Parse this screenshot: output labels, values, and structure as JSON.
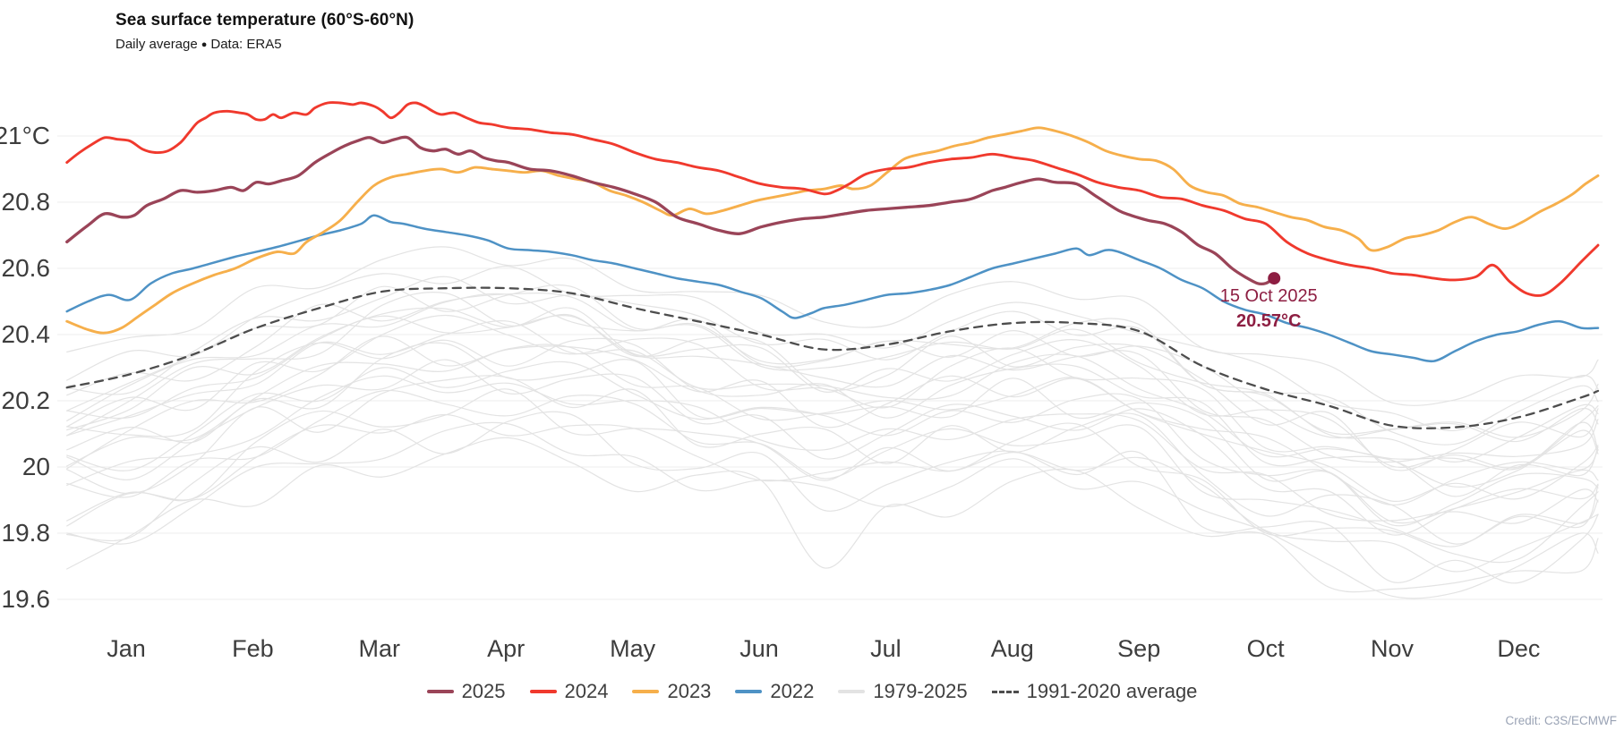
{
  "header": {
    "title": "Sea surface temperature (60°S-60°N)",
    "subtitle_prefix": "Daily average",
    "subtitle_separator": "●",
    "subtitle_suffix": "Data: ERA5"
  },
  "annotation": {
    "date": "15 Oct 2025",
    "value": "20.57°C"
  },
  "credit": "Credit: C3S/ECMWF",
  "colors": {
    "y2025": "#9a4458",
    "y2024": "#f0392d",
    "y2023": "#f6af4b",
    "y2022": "#4e92c5",
    "ensemble": "#e3e3e3",
    "average": "#4d4d4d",
    "annotation": "#8d1e42",
    "grid": "#ececec",
    "axis_text": "#3d3d3d",
    "credit_text": "#9aa3b5"
  },
  "chart_data": {
    "type": "line",
    "title": "Sea surface temperature (60°S-60°N)",
    "subtitle": "Daily average ● Data: ERA5",
    "ylabel": "°C",
    "ylim": [
      19.45,
      21.15
    ],
    "grid": "horizontal-only",
    "legend_position": "bottom",
    "x_axis": {
      "months": [
        "Jan",
        "Feb",
        "Mar",
        "Apr",
        "May",
        "Jun",
        "Jul",
        "Aug",
        "Sep",
        "Oct",
        "Nov",
        "Dec"
      ]
    },
    "y_axis": {
      "ticks": [
        21,
        20.8,
        20.6,
        20.4,
        20.2,
        20,
        19.8,
        19.6
      ],
      "tick_labels": [
        "21°C",
        "20.8",
        "20.6",
        "20.4",
        "20.2",
        "20",
        "19.8",
        "19.6"
      ]
    },
    "legend": [
      {
        "id": "y2025",
        "label": "2025",
        "style": "solid"
      },
      {
        "id": "y2024",
        "label": "2024",
        "style": "solid"
      },
      {
        "id": "y2023",
        "label": "2023",
        "style": "solid"
      },
      {
        "id": "y2022",
        "label": "2022",
        "style": "solid"
      },
      {
        "id": "ensemble",
        "label": "1979-2025",
        "style": "solid"
      },
      {
        "id": "average",
        "label": "1991-2020 average",
        "style": "dashed"
      }
    ],
    "end_point": {
      "series": "y2025",
      "day": 288,
      "value": 20.57,
      "label_date": "15 Oct 2025",
      "label_value": "20.57°C"
    },
    "series": {
      "y2025": {
        "label": "2025",
        "days": [
          1,
          6,
          10,
          14,
          17,
          20,
          24,
          28,
          32,
          36,
          40,
          43,
          46,
          49,
          52,
          56,
          60,
          64,
          67,
          70,
          73,
          76,
          79,
          82,
          85,
          88,
          91,
          94,
          97,
          100,
          103,
          106,
          111,
          116,
          121,
          126,
          131,
          136,
          141,
          146,
          151,
          156,
          161,
          166,
          171,
          176,
          181,
          186,
          191,
          196,
          201,
          206,
          211,
          216,
          221,
          224,
          228,
          232,
          236,
          241,
          246,
          251,
          254,
          258,
          262,
          266,
          270,
          274,
          278,
          281,
          284,
          286,
          288
        ],
        "values": [
          20.68,
          20.73,
          20.765,
          20.755,
          20.76,
          20.79,
          20.81,
          20.835,
          20.83,
          20.835,
          20.845,
          20.835,
          20.86,
          20.855,
          20.865,
          20.88,
          20.92,
          20.95,
          20.97,
          20.985,
          20.995,
          20.98,
          20.99,
          20.995,
          20.965,
          20.955,
          20.96,
          20.945,
          20.955,
          20.935,
          20.925,
          20.92,
          20.9,
          20.895,
          20.88,
          20.86,
          20.845,
          20.825,
          20.8,
          20.755,
          20.735,
          20.715,
          20.705,
          20.725,
          20.74,
          20.75,
          20.755,
          20.765,
          20.775,
          20.78,
          20.785,
          20.79,
          20.8,
          20.81,
          20.835,
          20.845,
          20.86,
          20.87,
          20.86,
          20.855,
          20.815,
          20.775,
          20.76,
          20.745,
          20.735,
          20.71,
          20.67,
          20.645,
          20.6,
          20.575,
          20.555,
          20.555,
          20.57
        ]
      },
      "y2024": {
        "label": "2024",
        "days": [
          1,
          4,
          7,
          10,
          13,
          16,
          19,
          22,
          25,
          28,
          30,
          32,
          34,
          36,
          39,
          42,
          44,
          46,
          48,
          50,
          52,
          55,
          58,
          60,
          63,
          66,
          69,
          71,
          74,
          76,
          78,
          80,
          82,
          84,
          86,
          88,
          90,
          93,
          96,
          99,
          102,
          106,
          111,
          116,
          121,
          126,
          131,
          136,
          141,
          146,
          151,
          156,
          161,
          166,
          171,
          176,
          181,
          184,
          187,
          191,
          196,
          201,
          206,
          211,
          216,
          221,
          226,
          231,
          236,
          241,
          246,
          251,
          256,
          261,
          266,
          271,
          276,
          281,
          286,
          291,
          296,
          301,
          306,
          311,
          316,
          321,
          326,
          331,
          336,
          340,
          344,
          348,
          352,
          356,
          361,
          365
        ],
        "values": [
          20.92,
          20.95,
          20.975,
          20.995,
          20.99,
          20.985,
          20.96,
          20.95,
          20.955,
          20.98,
          21.01,
          21.04,
          21.055,
          21.07,
          21.075,
          21.07,
          21.065,
          21.05,
          21.05,
          21.065,
          21.055,
          21.07,
          21.065,
          21.085,
          21.1,
          21.1,
          21.095,
          21.1,
          21.09,
          21.075,
          21.055,
          21.07,
          21.095,
          21.1,
          21.09,
          21.075,
          21.065,
          21.07,
          21.055,
          21.04,
          21.035,
          21.025,
          21.02,
          21.01,
          21.005,
          20.99,
          20.975,
          20.95,
          20.93,
          20.92,
          20.905,
          20.895,
          20.875,
          20.855,
          20.845,
          20.84,
          20.825,
          20.835,
          20.855,
          20.885,
          20.9,
          20.905,
          20.92,
          20.93,
          20.935,
          20.945,
          20.935,
          20.925,
          20.905,
          20.885,
          20.86,
          20.845,
          20.835,
          20.815,
          20.81,
          20.79,
          20.775,
          20.75,
          20.735,
          20.68,
          20.645,
          20.625,
          20.61,
          20.6,
          20.585,
          20.58,
          20.57,
          20.565,
          20.575,
          20.61,
          20.56,
          20.525,
          20.52,
          20.555,
          20.62,
          20.67
        ]
      },
      "y2023": {
        "label": "2023",
        "days": [
          1,
          6,
          10,
          14,
          18,
          22,
          26,
          31,
          36,
          41,
          46,
          51,
          55,
          58,
          62,
          66,
          70,
          74,
          78,
          82,
          86,
          90,
          94,
          98,
          102,
          106,
          110,
          114,
          118,
          122,
          126,
          130,
          134,
          138,
          142,
          145,
          149,
          153,
          157,
          161,
          165,
          169,
          173,
          177,
          181,
          185,
          188,
          192,
          196,
          200,
          204,
          208,
          212,
          216,
          220,
          224,
          228,
          232,
          236,
          240,
          244,
          248,
          252,
          256,
          260,
          264,
          268,
          272,
          276,
          280,
          284,
          288,
          292,
          296,
          300,
          304,
          308,
          311,
          315,
          319,
          323,
          327,
          331,
          335,
          339,
          343,
          347,
          351,
          355,
          359,
          362,
          365
        ],
        "values": [
          20.44,
          20.415,
          20.405,
          20.42,
          20.455,
          20.49,
          20.525,
          20.555,
          20.58,
          20.6,
          20.63,
          20.65,
          20.645,
          20.68,
          20.71,
          20.745,
          20.8,
          20.85,
          20.875,
          20.885,
          20.895,
          20.9,
          20.89,
          20.905,
          20.9,
          20.895,
          20.89,
          20.895,
          20.88,
          20.87,
          20.86,
          20.835,
          20.82,
          20.8,
          20.775,
          20.76,
          20.78,
          20.765,
          20.775,
          20.79,
          20.805,
          20.815,
          20.825,
          20.835,
          20.84,
          20.85,
          20.84,
          20.85,
          20.89,
          20.93,
          20.945,
          20.955,
          20.97,
          20.98,
          20.995,
          21.005,
          21.015,
          21.025,
          21.015,
          21.0,
          20.98,
          20.955,
          20.94,
          20.93,
          20.925,
          20.9,
          20.85,
          20.83,
          20.82,
          20.795,
          20.785,
          20.77,
          20.755,
          20.745,
          20.725,
          20.715,
          20.69,
          20.655,
          20.665,
          20.69,
          20.7,
          20.715,
          20.74,
          20.755,
          20.735,
          20.72,
          20.74,
          20.77,
          20.795,
          20.825,
          20.855,
          20.88
        ]
      },
      "y2022": {
        "label": "2022",
        "days": [
          1,
          6,
          11,
          16,
          21,
          26,
          31,
          41,
          51,
          61,
          66,
          71,
          74,
          78,
          81,
          86,
          91,
          96,
          101,
          106,
          111,
          116,
          121,
          126,
          131,
          136,
          141,
          146,
          151,
          156,
          161,
          166,
          171,
          174,
          178,
          181,
          186,
          191,
          196,
          201,
          206,
          211,
          216,
          221,
          226,
          231,
          236,
          241,
          244,
          248,
          251,
          256,
          261,
          266,
          271,
          276,
          281,
          286,
          291,
          296,
          301,
          306,
          311,
          316,
          321,
          326,
          331,
          336,
          341,
          346,
          351,
          356,
          361,
          365
        ],
        "values": [
          20.47,
          20.5,
          20.52,
          20.505,
          20.555,
          20.585,
          20.6,
          20.635,
          20.665,
          20.7,
          20.715,
          20.735,
          20.76,
          20.74,
          20.735,
          20.72,
          20.71,
          20.7,
          20.685,
          20.66,
          20.655,
          20.65,
          20.64,
          20.625,
          20.615,
          20.6,
          20.585,
          20.57,
          20.56,
          20.55,
          20.53,
          20.51,
          20.47,
          20.45,
          20.465,
          20.48,
          20.49,
          20.505,
          20.52,
          20.525,
          20.535,
          20.55,
          20.575,
          20.6,
          20.615,
          20.63,
          20.645,
          20.66,
          20.64,
          20.655,
          20.65,
          20.625,
          20.6,
          20.565,
          20.54,
          20.5,
          20.475,
          20.46,
          20.435,
          20.42,
          20.4,
          20.375,
          20.35,
          20.34,
          20.33,
          20.32,
          20.35,
          20.38,
          20.4,
          20.41,
          20.43,
          20.44,
          20.42,
          20.42
        ]
      },
      "average_1991_2020": {
        "label": "1991-2020 average",
        "dashed": true,
        "days": [
          1,
          16,
          31,
          46,
          61,
          76,
          91,
          106,
          121,
          136,
          151,
          166,
          181,
          196,
          211,
          226,
          241,
          256,
          271,
          286,
          301,
          316,
          331,
          346,
          361,
          365
        ],
        "values": [
          20.24,
          20.28,
          20.34,
          20.42,
          20.48,
          20.53,
          20.54,
          20.54,
          20.525,
          20.48,
          20.44,
          20.4,
          20.355,
          20.37,
          20.41,
          20.435,
          20.435,
          20.41,
          20.305,
          20.235,
          20.185,
          20.125,
          20.12,
          20.15,
          20.21,
          20.23
        ]
      },
      "ensemble_1979_2025": {
        "label": "1979-2025",
        "days": [
          1,
          16,
          31,
          46,
          61,
          76,
          91,
          106,
          121,
          136,
          151,
          166,
          181,
          196,
          211,
          226,
          241,
          256,
          271,
          286,
          301,
          316,
          331,
          346,
          361,
          365
        ],
        "base_values": [
          20.24,
          20.28,
          20.34,
          20.42,
          20.48,
          20.53,
          20.54,
          20.54,
          20.525,
          20.48,
          20.44,
          20.4,
          20.355,
          20.37,
          20.41,
          20.435,
          20.435,
          20.41,
          20.305,
          20.235,
          20.185,
          20.125,
          20.12,
          20.15,
          20.21,
          20.23
        ],
        "noise_pattern": [
          0.03,
          -0.02,
          0.045,
          -0.04,
          0.01,
          0.05,
          -0.03,
          0.02,
          -0.05,
          0,
          0.04,
          -0.01,
          -0.045,
          0.03,
          0.05,
          -0.025,
          0.01,
          -0.05,
          0.02,
          0.045,
          -0.03,
          -0.01,
          0.05,
          -0.04,
          0.005,
          0.025
        ],
        "lines": [
          {
            "offset": -0.5,
            "phase": 3,
            "amp": 1.2,
            "spikes": [
              [
                12,
                -0.13
              ]
            ]
          },
          {
            "offset": -0.46,
            "phase": 7,
            "amp": 1.0,
            "spikes": [
              [
                21,
                -0.1
              ]
            ]
          },
          {
            "offset": -0.43,
            "phase": 11,
            "amp": 1.4
          },
          {
            "offset": -0.4,
            "phase": 1,
            "amp": 0.9
          },
          {
            "offset": -0.37,
            "phase": 15,
            "amp": 1.3
          },
          {
            "offset": -0.34,
            "phase": 5,
            "amp": 1.0
          },
          {
            "offset": -0.315,
            "phase": 19,
            "amp": 1.5
          },
          {
            "offset": -0.295,
            "phase": 9,
            "amp": 0.8
          },
          {
            "offset": -0.27,
            "phase": 22,
            "amp": 1.2
          },
          {
            "offset": -0.25,
            "phase": 2,
            "amp": 1.0
          },
          {
            "offset": -0.23,
            "phase": 13,
            "amp": 1.4
          },
          {
            "offset": -0.21,
            "phase": 6,
            "amp": 0.9
          },
          {
            "offset": -0.19,
            "phase": 17,
            "amp": 1.1
          },
          {
            "offset": -0.17,
            "phase": 10,
            "amp": 1.3
          },
          {
            "offset": -0.15,
            "phase": 24,
            "amp": 1.0
          },
          {
            "offset": -0.13,
            "phase": 4,
            "amp": 1.2
          },
          {
            "offset": -0.11,
            "phase": 14,
            "amp": 0.8
          },
          {
            "offset": -0.095,
            "phase": 20,
            "amp": 1.1
          },
          {
            "offset": -0.08,
            "phase": 8,
            "amp": 1.3
          },
          {
            "offset": -0.06,
            "phase": 12,
            "amp": 0.9
          },
          {
            "offset": -0.045,
            "phase": 18,
            "amp": 1.1
          },
          {
            "offset": -0.03,
            "phase": 23,
            "amp": 1.0
          },
          {
            "offset": -0.01,
            "phase": 16,
            "amp": 0.9
          },
          {
            "offset": 0.03,
            "phase": 21,
            "amp": 0.8
          },
          {
            "offset": 0.09,
            "phase": 25,
            "amp": 0.7
          }
        ]
      }
    }
  }
}
